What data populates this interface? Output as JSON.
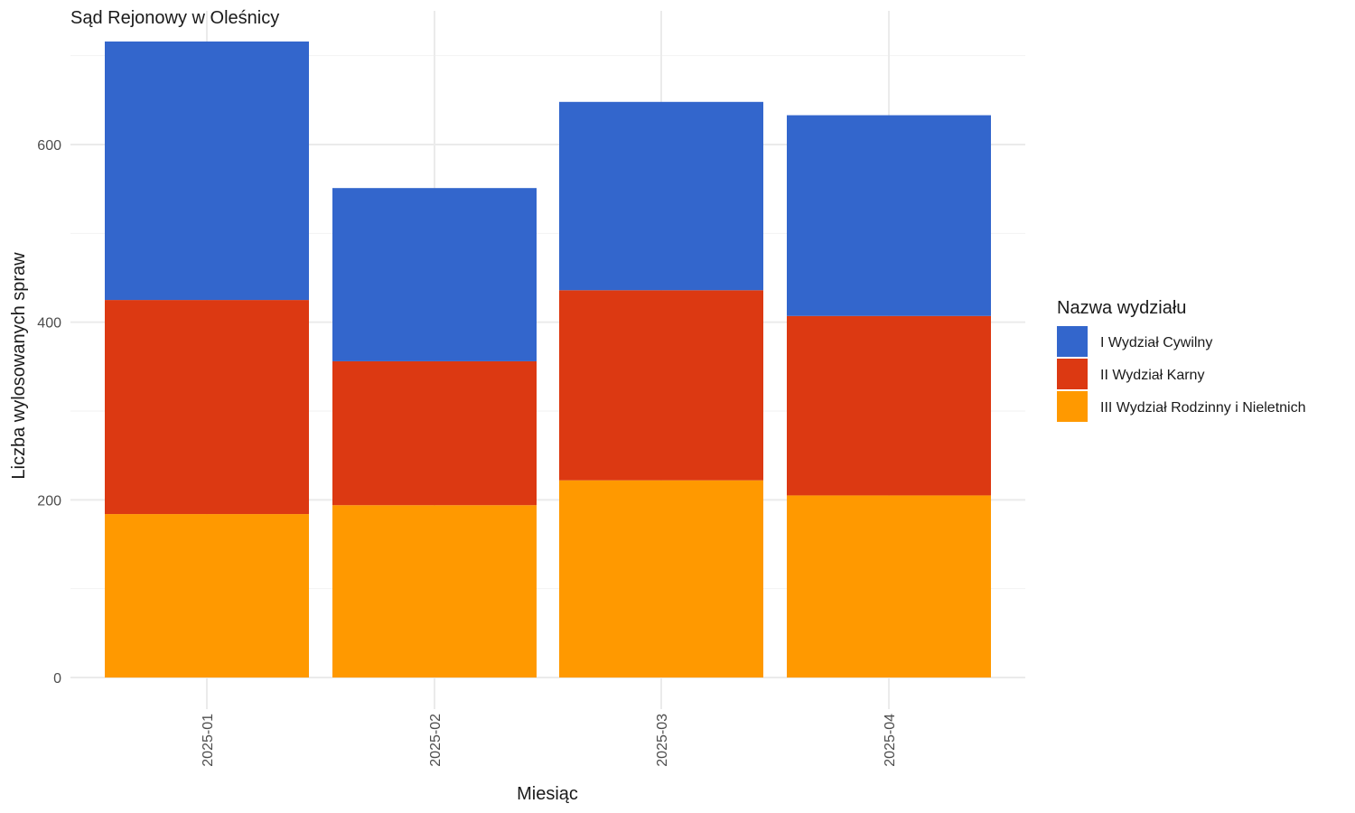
{
  "chart_data": {
    "type": "bar",
    "stacked": true,
    "title": "Sąd Rejonowy w Oleśnicy",
    "xlabel": "Miesiąc",
    "ylabel": "Liczba wylosowanych spraw",
    "categories": [
      "2025-01",
      "2025-02",
      "2025-03",
      "2025-04"
    ],
    "ylim": [
      0,
      750
    ],
    "yticks": [
      0,
      200,
      400,
      600
    ],
    "grid": true,
    "legend": {
      "title": "Nazwa wydziału",
      "position": "right"
    },
    "series": [
      {
        "name": "III Wydział Rodzinny i Nieletnich",
        "color": "#FF9900",
        "values": [
          184,
          194,
          222,
          205
        ]
      },
      {
        "name": "II Wydział Karny",
        "color": "#DC3912",
        "values": [
          241,
          162,
          214,
          202
        ]
      },
      {
        "name": "I Wydział Cywilny",
        "color": "#3366CC",
        "values": [
          291,
          195,
          212,
          226
        ]
      }
    ],
    "legend_order": [
      "I Wydział Cywilny",
      "II Wydział Karny",
      "III Wydział Rodzinny i Nieletnich"
    ]
  }
}
